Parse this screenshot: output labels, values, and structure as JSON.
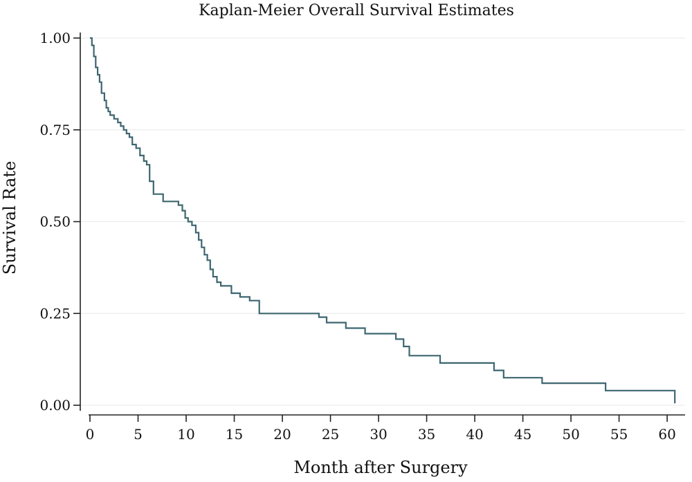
{
  "chart_data": {
    "type": "line",
    "step": "post",
    "title": "Kaplan-Meier Overall Survival Estimates",
    "xlabel": "Month after Surgery",
    "ylabel": "Survival Rate",
    "xlim": [
      0,
      61
    ],
    "ylim": [
      0,
      1
    ],
    "xticks": [
      "0",
      "5",
      "10",
      "15",
      "20",
      "25",
      "30",
      "35",
      "40",
      "45",
      "50",
      "55",
      "60"
    ],
    "yticks": [
      "0.00",
      "0.25",
      "0.50",
      "0.75",
      "1.00"
    ],
    "grid": true,
    "colors": {
      "line": "#3d6670",
      "grid": "#ededed",
      "axis": "#222222"
    },
    "series": [
      {
        "x": [
          0,
          0.2,
          0.4,
          0.6,
          0.8,
          1.0,
          1.2,
          1.5,
          1.7,
          1.9,
          2.1,
          2.5,
          2.9,
          3.2,
          3.5,
          3.8,
          4.1,
          4.4,
          4.8,
          5.2,
          5.6,
          5.9,
          6.2,
          6.6,
          7.6,
          9.2,
          9.6,
          9.9,
          10.2,
          10.6,
          11.0,
          11.3,
          11.6,
          11.9,
          12.2,
          12.5,
          12.8,
          13.2,
          13.6,
          14.7,
          15.6,
          16.6,
          17.6,
          23.8,
          24.6,
          26.6,
          28.6,
          29.6,
          31.8,
          32.6,
          33.2,
          36.4,
          42.0,
          43.0,
          47.0,
          53.6,
          60.8
        ],
        "values": [
          1.0,
          0.98,
          0.95,
          0.92,
          0.9,
          0.88,
          0.85,
          0.83,
          0.81,
          0.8,
          0.79,
          0.78,
          0.77,
          0.76,
          0.75,
          0.74,
          0.73,
          0.71,
          0.7,
          0.68,
          0.665,
          0.655,
          0.61,
          0.575,
          0.555,
          0.545,
          0.53,
          0.51,
          0.5,
          0.49,
          0.47,
          0.45,
          0.43,
          0.41,
          0.395,
          0.37,
          0.35,
          0.335,
          0.325,
          0.305,
          0.295,
          0.285,
          0.25,
          0.24,
          0.225,
          0.21,
          0.195,
          0.195,
          0.18,
          0.16,
          0.135,
          0.115,
          0.095,
          0.075,
          0.06,
          0.04,
          0.005
        ]
      }
    ]
  }
}
